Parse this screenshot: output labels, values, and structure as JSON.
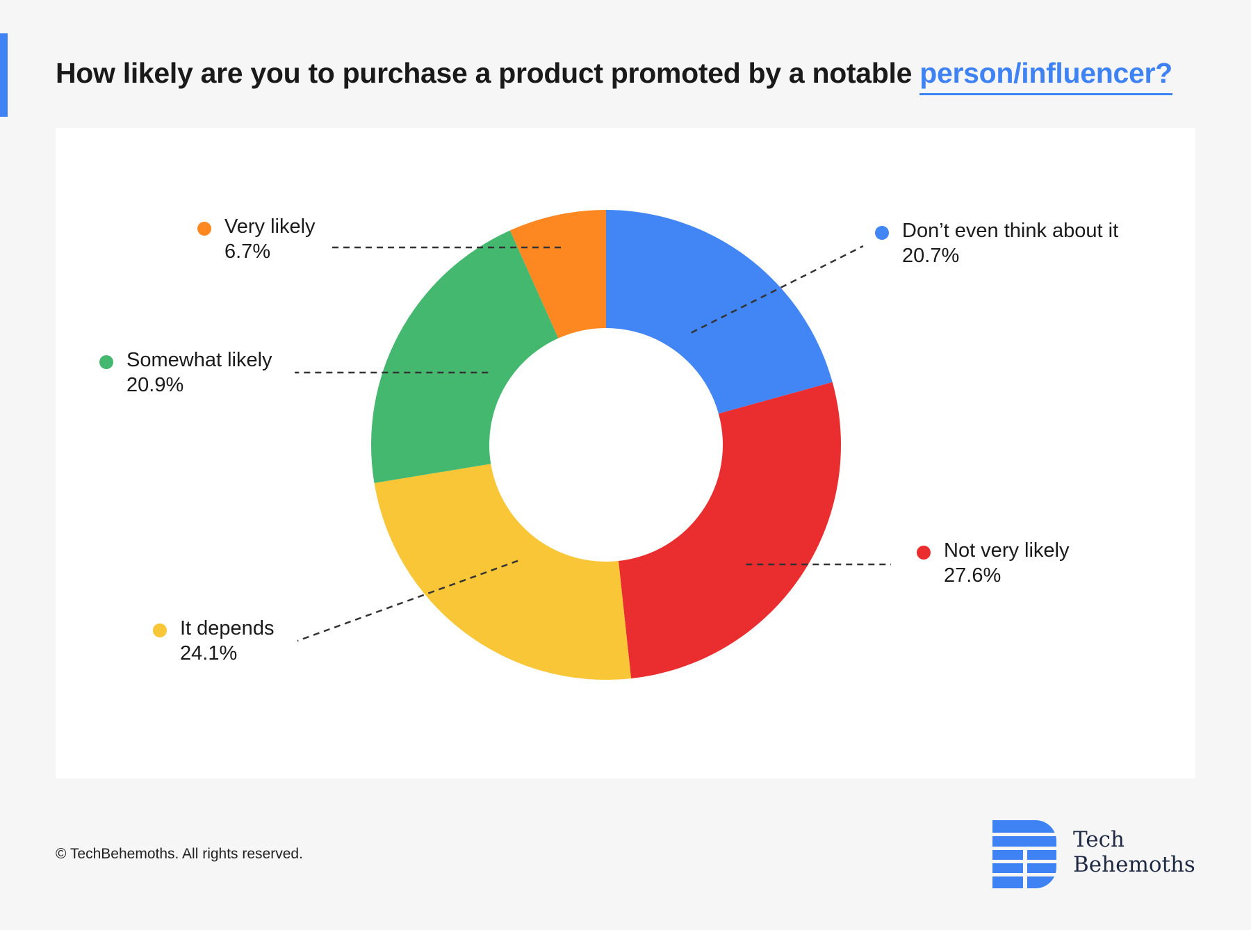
{
  "header": {
    "title_main": "How likely are you to purchase a product promoted by a notable",
    "title_highlight": "person/influencer?"
  },
  "colors": {
    "accent": "#3f82f4",
    "blue": "#4285f4",
    "red": "#ea2e30",
    "yellow": "#f9c637",
    "green": "#45b86f",
    "orange": "#fd8721"
  },
  "chart_data": {
    "type": "pie",
    "variant": "donut",
    "title": "How likely are you to purchase a product promoted by a notable person/influencer?",
    "slices": [
      {
        "label": "Don’t even think about it",
        "value": 20.7,
        "value_label": "20.7%",
        "color": "#4285f4"
      },
      {
        "label": "Not very likely",
        "value": 27.6,
        "value_label": "27.6%",
        "color": "#ea2e30"
      },
      {
        "label": "It depends",
        "value": 24.1,
        "value_label": "24.1%",
        "color": "#f9c637"
      },
      {
        "label": "Somewhat likely",
        "value": 20.9,
        "value_label": "20.9%",
        "color": "#45b86f"
      },
      {
        "label": "Very likely",
        "value": 6.7,
        "value_label": "6.7%",
        "color": "#fd8721"
      }
    ]
  },
  "footer": {
    "copyright": "© TechBehemoths. All rights reserved."
  },
  "logo": {
    "line1": "Tech",
    "line2": "Behemoths"
  }
}
